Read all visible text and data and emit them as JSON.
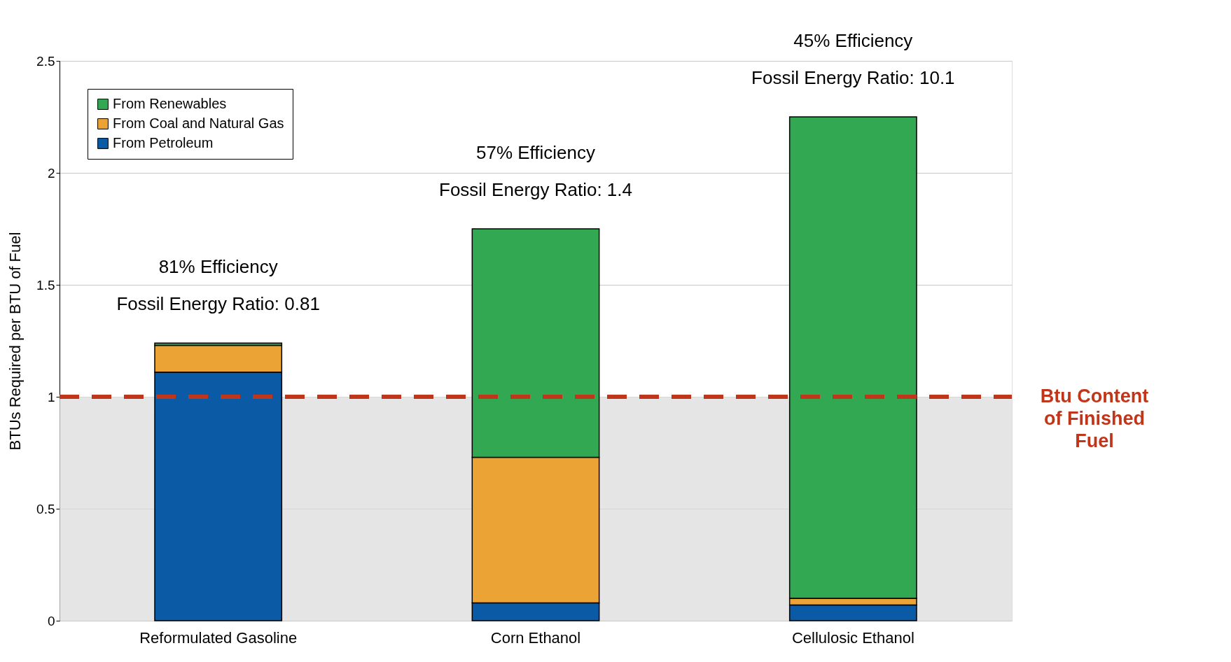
{
  "chart_data": {
    "type": "bar",
    "stacked": true,
    "ylabel": "BTUs Required per BTU of Fuel",
    "categories": [
      "Reformulated Gasoline",
      "Corn Ethanol",
      "Cellulosic Ethanol"
    ],
    "series": [
      {
        "name": "From Petroleum",
        "color": "#0a5aa6",
        "values": [
          1.11,
          0.08,
          0.07
        ]
      },
      {
        "name": "From Coal and Natural Gas",
        "color": "#eca336",
        "values": [
          0.12,
          0.65,
          0.03
        ]
      },
      {
        "name": "From Renewables",
        "color": "#33a852",
        "values": [
          0.01,
          1.02,
          2.15
        ]
      }
    ],
    "ylim": [
      0,
      2.5
    ],
    "yticks": [
      0,
      0.5,
      1,
      1.5,
      2,
      2.5
    ],
    "grid": "y",
    "legend": "top left",
    "ref_lines": [
      {
        "axis": "y",
        "value": 1,
        "label": "Btu Content of Finished Fuel",
        "color": "#c0361a",
        "line_style": "dashed"
      }
    ],
    "bands": [
      {
        "axis": "y",
        "from": 0,
        "to": 1,
        "color": "#dcdcdc"
      }
    ],
    "annotations": [
      "81% Efficiency",
      "Fossil Energy Ratio: 0.81",
      "57% Efficiency",
      "Fossil Energy Ratio: 1.4",
      "45% Efficiency",
      "Fossil Energy Ratio: 10.1"
    ]
  }
}
